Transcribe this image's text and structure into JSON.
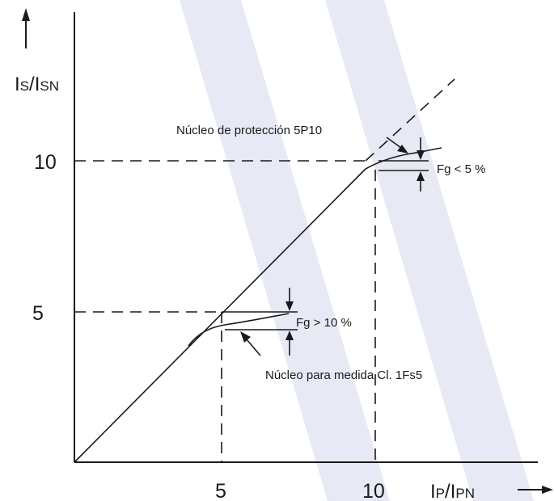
{
  "colors": {
    "ink": "#1a1a1a",
    "watermark": "#e7eaf5"
  },
  "y_axis": {
    "label_main": "I",
    "label_main_sub": "S",
    "label_sep": "/",
    "label_denom": "I",
    "label_denom_sub": "SN",
    "ticks": [
      "10",
      "5"
    ],
    "arrow": "up-arrow"
  },
  "x_axis": {
    "label_main": "I",
    "label_main_sub": "P",
    "label_sep": "/",
    "label_denom": "I",
    "label_denom_sub": "PN",
    "ticks": [
      "5",
      "10"
    ],
    "arrow": "right-arrow"
  },
  "annotations": {
    "protection_core": "Núcleo de protección 5P10",
    "fg_protection": "Fg < 5 %",
    "measurement_core": "Núcleo para medida Cl. 1Fs5",
    "fg_measurement": "Fg > 10 %"
  }
}
